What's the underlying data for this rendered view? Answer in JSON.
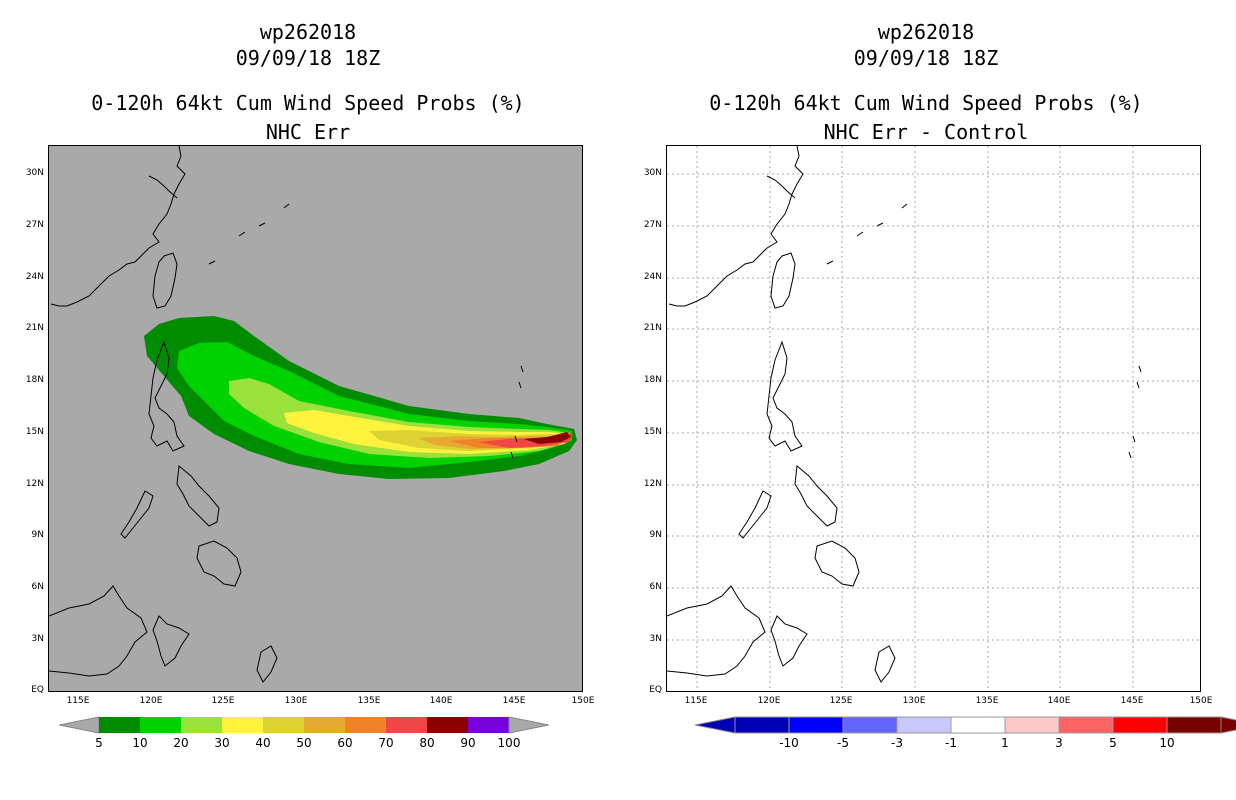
{
  "left": {
    "storm_id": "wp262018",
    "datetime": "09/09/18 18Z",
    "product": "0-120h 64kt Cum Wind Speed Probs (%)",
    "subtitle": "NHC Err",
    "background_color": "#a9a9a9",
    "colorbar": {
      "colors": [
        "#008c00",
        "#00d200",
        "#9be13c",
        "#fff23c",
        "#dcd232",
        "#e6aa32",
        "#f08228",
        "#f04646",
        "#8c0000",
        "#7800dc"
      ],
      "labels": [
        "5",
        "10",
        "20",
        "30",
        "40",
        "50",
        "60",
        "70",
        "80",
        "90",
        "100"
      ]
    }
  },
  "right": {
    "storm_id": "wp262018",
    "datetime": "09/09/18 18Z",
    "product": "0-120h 64kt Cum Wind Speed Probs (%)",
    "subtitle": "NHC Err - Control",
    "background_color": "#ffffff",
    "colorbar": {
      "colors": [
        "#0000b4",
        "#0000ff",
        "#6464ff",
        "#c8c8ff",
        "#ffffff",
        "#ffc8c8",
        "#ff6464",
        "#ff0000",
        "#780000"
      ],
      "labels": [
        "-10",
        "-5",
        "-3",
        "-1",
        "1",
        "3",
        "5",
        "10"
      ]
    }
  },
  "axes": {
    "lat_labels": [
      "30N",
      "27N",
      "24N",
      "21N",
      "18N",
      "15N",
      "12N",
      "9N",
      "6N",
      "3N",
      "EQ"
    ],
    "lon_labels": [
      "115E",
      "120E",
      "125E",
      "130E",
      "135E",
      "140E",
      "145E",
      "150E"
    ]
  }
}
